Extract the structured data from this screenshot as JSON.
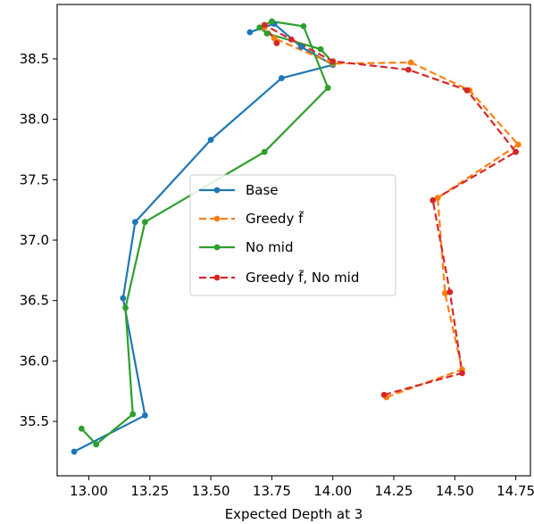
{
  "chart_data": {
    "type": "line",
    "title": "",
    "xlabel": "Expected Depth at 3",
    "ylabel": "",
    "xlim": [
      12.87,
      14.81
    ],
    "ylim": [
      35.05,
      38.95
    ],
    "xticks": [
      13.0,
      13.25,
      13.5,
      13.75,
      14.0,
      14.25,
      14.5,
      14.75
    ],
    "xtick_labels": [
      "13.00",
      "13.25",
      "13.50",
      "13.75",
      "14.00",
      "14.25",
      "14.50",
      "14.75"
    ],
    "yticks": [
      35.5,
      36.0,
      36.5,
      37.0,
      37.5,
      38.0,
      38.5
    ],
    "ytick_labels": [
      "35.5",
      "36.0",
      "36.5",
      "37.0",
      "37.5",
      "38.0",
      "38.5"
    ],
    "grid": false,
    "legend": "center",
    "series": [
      {
        "name": "Base",
        "color": "#1f77b4",
        "dashed": false,
        "points": [
          [
            12.94,
            35.25
          ],
          [
            13.23,
            35.55
          ],
          [
            13.14,
            36.52
          ],
          [
            13.19,
            37.15
          ],
          [
            13.5,
            37.83
          ],
          [
            13.79,
            38.34
          ],
          [
            14.0,
            38.45
          ],
          [
            13.87,
            38.6
          ],
          [
            13.76,
            38.79
          ],
          [
            13.66,
            38.72
          ]
        ]
      },
      {
        "name": "Greedy f̃",
        "color": "#ff7f0e",
        "dashed": true,
        "points": [
          [
            14.22,
            35.7
          ],
          [
            14.53,
            35.93
          ],
          [
            14.46,
            36.56
          ],
          [
            14.43,
            37.35
          ],
          [
            14.76,
            37.79
          ],
          [
            14.56,
            38.24
          ],
          [
            14.32,
            38.47
          ],
          [
            14.0,
            38.46
          ],
          [
            13.76,
            38.67
          ],
          [
            13.72,
            38.76
          ]
        ]
      },
      {
        "name": "No mid",
        "color": "#2ca02c",
        "dashed": false,
        "points": [
          [
            12.97,
            35.44
          ],
          [
            13.03,
            35.31
          ],
          [
            13.18,
            35.56
          ],
          [
            13.15,
            36.44
          ],
          [
            13.23,
            37.15
          ],
          [
            13.72,
            37.73
          ],
          [
            13.98,
            38.26
          ],
          [
            13.88,
            38.77
          ],
          [
            13.75,
            38.81
          ],
          [
            13.7,
            38.76
          ],
          [
            13.73,
            38.71
          ],
          [
            13.95,
            38.58
          ],
          [
            14.0,
            38.47
          ]
        ]
      },
      {
        "name": "Greedy f̃, No mid",
        "color": "#d62728",
        "dashed": true,
        "points": [
          [
            14.21,
            35.72
          ],
          [
            14.53,
            35.9
          ],
          [
            14.48,
            36.57
          ],
          [
            14.41,
            37.33
          ],
          [
            14.75,
            37.73
          ],
          [
            14.55,
            38.24
          ],
          [
            14.31,
            38.41
          ],
          [
            14.0,
            38.48
          ],
          [
            13.83,
            38.66
          ],
          [
            13.72,
            38.78
          ],
          [
            13.77,
            38.63
          ]
        ]
      }
    ]
  }
}
